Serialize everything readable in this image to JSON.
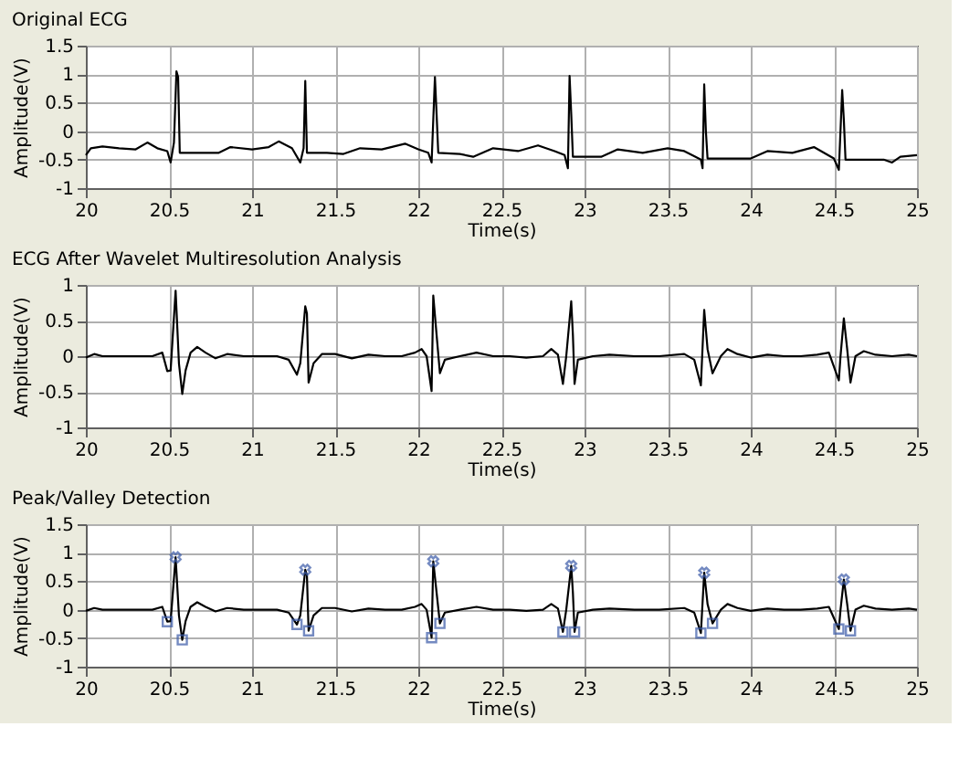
{
  "chart_data": [
    {
      "type": "line",
      "title": "Original ECG",
      "xlabel": "Time(s)",
      "ylabel": "Amplitude(V)",
      "xlim": [
        20,
        25
      ],
      "xticks": [
        20,
        20.5,
        21,
        21.5,
        22,
        22.5,
        23,
        23.5,
        24,
        24.5,
        25
      ],
      "ylim": [
        -1,
        1.5
      ],
      "yticks": [
        -1,
        -0.5,
        0,
        0.5,
        1,
        1.5
      ],
      "grid": true,
      "marker": "none",
      "line_style": "solid",
      "series": [
        {
          "color": "#000000",
          "x": [
            20.0,
            20.03,
            20.1,
            20.2,
            20.3,
            20.37,
            20.43,
            20.49,
            20.51,
            20.53,
            20.545,
            20.555,
            20.565,
            20.7,
            20.8,
            20.87,
            21.0,
            21.1,
            21.16,
            21.24,
            21.29,
            21.31,
            21.32,
            21.33,
            21.45,
            21.55,
            21.65,
            21.78,
            21.92,
            22.0,
            22.06,
            22.08,
            22.1,
            22.11,
            22.12,
            22.25,
            22.33,
            22.45,
            22.6,
            22.72,
            22.82,
            22.88,
            22.9,
            22.91,
            22.92,
            22.93,
            23.1,
            23.2,
            23.35,
            23.5,
            23.6,
            23.7,
            23.71,
            23.72,
            23.73,
            23.74,
            23.9,
            24.0,
            24.1,
            24.25,
            24.38,
            24.5,
            24.53,
            24.55,
            24.56,
            24.57,
            24.7,
            24.8,
            24.85,
            24.9,
            25.0
          ],
          "values": [
            -0.42,
            -0.3,
            -0.27,
            -0.3,
            -0.32,
            -0.2,
            -0.3,
            -0.35,
            -0.55,
            -0.2,
            1.05,
            0.95,
            -0.38,
            -0.38,
            -0.38,
            -0.28,
            -0.32,
            -0.28,
            -0.18,
            -0.3,
            -0.55,
            -0.3,
            0.88,
            -0.38,
            -0.38,
            -0.4,
            -0.3,
            -0.32,
            -0.22,
            -0.32,
            -0.38,
            -0.55,
            0.95,
            0.3,
            -0.38,
            -0.4,
            -0.45,
            -0.3,
            -0.35,
            -0.25,
            -0.35,
            -0.42,
            -0.65,
            0.97,
            0.3,
            -0.45,
            -0.45,
            -0.32,
            -0.38,
            -0.3,
            -0.35,
            -0.5,
            -0.65,
            0.82,
            0.0,
            -0.48,
            -0.48,
            -0.48,
            -0.35,
            -0.38,
            -0.28,
            -0.48,
            -0.68,
            0.72,
            0.2,
            -0.5,
            -0.5,
            -0.5,
            -0.55,
            -0.45,
            -0.42
          ]
        }
      ]
    },
    {
      "type": "line",
      "title": "ECG After Wavelet Multiresolution Analysis",
      "xlabel": "Time(s)",
      "ylabel": "Amplitude(V)",
      "xlim": [
        20,
        25
      ],
      "xticks": [
        20,
        20.5,
        21,
        21.5,
        22,
        22.5,
        23,
        23.5,
        24,
        24.5,
        25
      ],
      "ylim": [
        -1,
        1
      ],
      "yticks": [
        -1,
        -0.5,
        0,
        0.5,
        1
      ],
      "grid": true,
      "marker": "none",
      "line_style": "solid",
      "series": [
        {
          "color": "#000000",
          "x": [
            20.0,
            20.05,
            20.1,
            20.2,
            20.3,
            20.4,
            20.46,
            20.49,
            20.51,
            20.54,
            20.56,
            20.58,
            20.6,
            20.63,
            20.67,
            20.72,
            20.78,
            20.85,
            20.95,
            21.05,
            21.15,
            21.22,
            21.27,
            21.29,
            21.32,
            21.33,
            21.34,
            21.37,
            21.42,
            21.5,
            21.6,
            21.7,
            21.8,
            21.9,
            21.98,
            22.02,
            22.05,
            22.08,
            22.09,
            22.11,
            22.13,
            22.16,
            22.25,
            22.35,
            22.45,
            22.55,
            22.65,
            22.75,
            22.8,
            22.84,
            22.87,
            22.89,
            22.92,
            22.93,
            22.94,
            22.96,
            23.05,
            23.15,
            23.3,
            23.45,
            23.6,
            23.66,
            23.7,
            23.72,
            23.74,
            23.77,
            23.82,
            23.86,
            23.92,
            24.0,
            24.1,
            24.2,
            24.3,
            24.4,
            24.47,
            24.53,
            24.54,
            24.56,
            24.58,
            24.6,
            24.63,
            24.68,
            24.75,
            24.85,
            24.95,
            25.0
          ],
          "values": [
            -0.02,
            0.03,
            0.0,
            0.0,
            0.0,
            0.0,
            0.05,
            -0.21,
            -0.2,
            0.92,
            -0.1,
            -0.53,
            -0.2,
            0.05,
            0.13,
            0.05,
            -0.03,
            0.03,
            0.0,
            0.0,
            0.0,
            -0.05,
            -0.26,
            -0.1,
            0.7,
            0.6,
            -0.37,
            -0.1,
            0.03,
            0.03,
            -0.03,
            0.02,
            0.0,
            0.0,
            0.05,
            0.1,
            0.0,
            -0.49,
            0.85,
            0.3,
            -0.24,
            -0.05,
            0.0,
            0.05,
            0.0,
            0.0,
            -0.02,
            0.0,
            0.1,
            0.02,
            -0.39,
            0.0,
            0.77,
            0.3,
            -0.39,
            -0.05,
            0.0,
            0.02,
            0.0,
            0.0,
            0.03,
            -0.05,
            -0.41,
            0.65,
            0.1,
            -0.24,
            0.0,
            0.1,
            0.03,
            -0.02,
            0.02,
            0.0,
            0.0,
            0.02,
            0.05,
            -0.34,
            0.0,
            0.53,
            0.1,
            -0.37,
            0.0,
            0.07,
            0.02,
            0.0,
            0.02,
            0.0
          ]
        }
      ]
    },
    {
      "type": "line",
      "title": "Peak/Valley Detection",
      "xlabel": "Time(s)",
      "ylabel": "Amplitude(V)",
      "xlim": [
        20,
        25
      ],
      "xticks": [
        20,
        20.5,
        21,
        21.5,
        22,
        22.5,
        23,
        23.5,
        24,
        24.5,
        25
      ],
      "ylim": [
        -1,
        1.5
      ],
      "yticks": [
        -1,
        -0.5,
        0,
        0.5,
        1,
        1.5
      ],
      "grid": true,
      "line_style": "solid",
      "series": [
        {
          "color": "#000000",
          "marker": "none",
          "x": [
            20.0,
            20.05,
            20.1,
            20.2,
            20.3,
            20.4,
            20.46,
            20.49,
            20.51,
            20.54,
            20.56,
            20.58,
            20.6,
            20.63,
            20.67,
            20.72,
            20.78,
            20.85,
            20.95,
            21.05,
            21.15,
            21.22,
            21.27,
            21.29,
            21.32,
            21.33,
            21.34,
            21.37,
            21.42,
            21.5,
            21.6,
            21.7,
            21.8,
            21.9,
            21.98,
            22.02,
            22.05,
            22.08,
            22.09,
            22.11,
            22.13,
            22.16,
            22.25,
            22.35,
            22.45,
            22.55,
            22.65,
            22.75,
            22.8,
            22.84,
            22.87,
            22.89,
            22.92,
            22.93,
            22.94,
            22.96,
            23.05,
            23.15,
            23.3,
            23.45,
            23.6,
            23.66,
            23.7,
            23.72,
            23.74,
            23.77,
            23.82,
            23.86,
            23.92,
            24.0,
            24.1,
            24.2,
            24.3,
            24.4,
            24.47,
            24.53,
            24.54,
            24.56,
            24.58,
            24.6,
            24.63,
            24.68,
            24.75,
            24.85,
            24.95,
            25.0
          ],
          "values": [
            -0.02,
            0.03,
            0.0,
            0.0,
            0.0,
            0.0,
            0.05,
            -0.21,
            -0.2,
            0.92,
            -0.1,
            -0.53,
            -0.2,
            0.05,
            0.13,
            0.05,
            -0.03,
            0.03,
            0.0,
            0.0,
            0.0,
            -0.05,
            -0.26,
            -0.1,
            0.7,
            0.6,
            -0.37,
            -0.1,
            0.03,
            0.03,
            -0.03,
            0.02,
            0.0,
            0.0,
            0.05,
            0.1,
            0.0,
            -0.49,
            0.85,
            0.3,
            -0.24,
            -0.05,
            0.0,
            0.05,
            0.0,
            0.0,
            -0.02,
            0.0,
            0.1,
            0.02,
            -0.39,
            0.0,
            0.77,
            0.3,
            -0.39,
            -0.05,
            0.0,
            0.02,
            0.0,
            0.0,
            0.03,
            -0.05,
            -0.41,
            0.65,
            0.1,
            -0.24,
            0.0,
            0.1,
            0.03,
            -0.02,
            0.02,
            0.0,
            0.0,
            0.02,
            0.05,
            -0.34,
            0.0,
            0.53,
            0.1,
            -0.37,
            0.0,
            0.07,
            0.02,
            0.0,
            0.02,
            0.0
          ]
        },
        {
          "type": "scatter",
          "color": "#3a5aa8",
          "marker": "cross",
          "x": [
            20.54,
            21.32,
            22.09,
            22.92,
            23.72,
            24.56
          ],
          "values": [
            0.92,
            0.7,
            0.85,
            0.77,
            0.65,
            0.53
          ]
        },
        {
          "type": "scatter",
          "color": "#3a5aa8",
          "marker": "square",
          "x": [
            20.49,
            20.58,
            21.27,
            21.34,
            22.08,
            22.13,
            22.87,
            22.94,
            23.7,
            23.77,
            24.53,
            24.6
          ],
          "values": [
            -0.21,
            -0.53,
            -0.26,
            -0.37,
            -0.49,
            -0.24,
            -0.39,
            -0.39,
            -0.41,
            -0.24,
            -0.34,
            -0.37
          ]
        }
      ]
    }
  ]
}
